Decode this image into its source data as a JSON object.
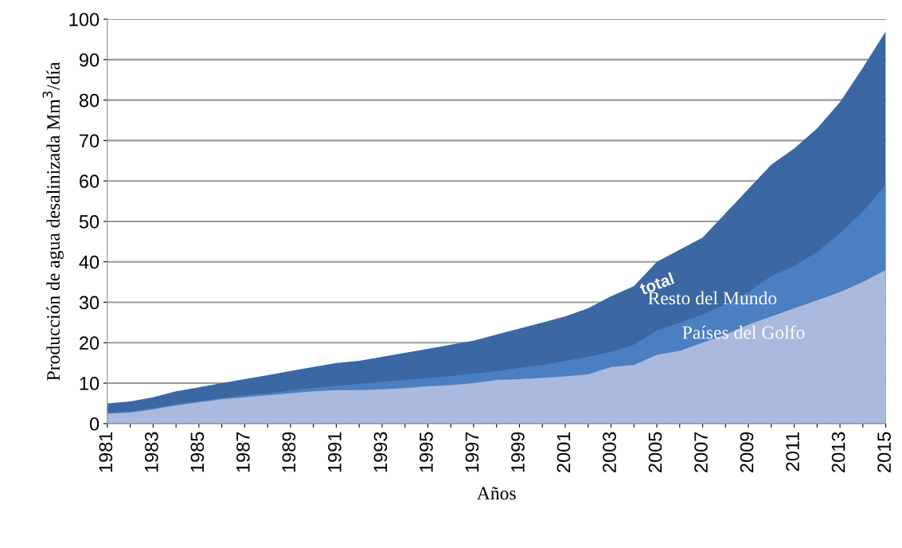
{
  "chart_data": {
    "type": "area",
    "xlabel": "Años",
    "ylabel": "Producción de agua desalinizada Mm$^{3}$/día",
    "categories": [
      "1981",
      null,
      "1983",
      null,
      "1985",
      null,
      "1987",
      null,
      "1989",
      null,
      "1991",
      null,
      "1993",
      null,
      "1995",
      null,
      "1997",
      null,
      "1999",
      null,
      "2001",
      null,
      "2003",
      null,
      "2005",
      null,
      "2007",
      null,
      "2009",
      null,
      "2011",
      null,
      "2013",
      null,
      "2015"
    ],
    "series": [
      {
        "name": "total",
        "color": "#3b67a2",
        "values": [
          5,
          5.5,
          6.5,
          8,
          9,
          10,
          11,
          12,
          13,
          14,
          15,
          15.5,
          16.5,
          17.5,
          18.5,
          19.5,
          20.5,
          22,
          23.5,
          25,
          26.5,
          28.5,
          31.5,
          34,
          40,
          43,
          46,
          52,
          58,
          64,
          68,
          73,
          79.5,
          88,
          97
        ]
      },
      {
        "name": "Resto del Mundo",
        "color": "#4a7fc1",
        "values": [
          2.7,
          3,
          3.8,
          4.8,
          5.6,
          6.3,
          7,
          7.5,
          8.2,
          8.8,
          9.3,
          9.8,
          10.3,
          10.8,
          11.3,
          11.8,
          12.3,
          13,
          13.8,
          14.5,
          15.5,
          16.5,
          17.8,
          19.5,
          23,
          25,
          27,
          29.5,
          32.5,
          36.5,
          39,
          42.5,
          47,
          52.5,
          59
        ]
      },
      {
        "name": "Países del Golfo",
        "color": "#aab9de",
        "values": [
          2.5,
          2.7,
          3.5,
          4.5,
          5.3,
          6,
          6.5,
          7,
          7.5,
          8,
          8.3,
          8.3,
          8.5,
          8.8,
          9.2,
          9.5,
          10,
          10.8,
          11,
          11.3,
          11.7,
          12.2,
          14,
          14.5,
          17,
          18,
          20,
          22,
          24.5,
          26.5,
          28.5,
          30.5,
          32.5,
          35,
          38
        ]
      }
    ],
    "ylim": [
      0,
      100
    ],
    "yticks": [
      0,
      10,
      20,
      30,
      40,
      50,
      60,
      70,
      80,
      90,
      100
    ],
    "grid": "y",
    "legend": false
  }
}
